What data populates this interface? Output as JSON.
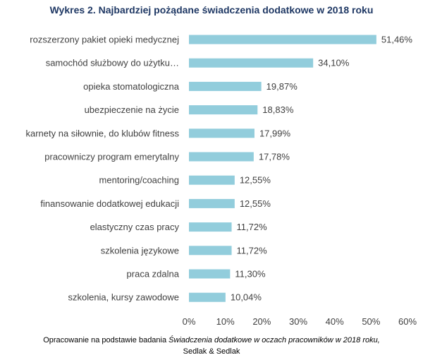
{
  "chart_data": {
    "type": "bar",
    "orientation": "horizontal",
    "title": "Wykres 2. Najbardziej pożądane świadczenia dodatkowe w 2018 roku",
    "categories": [
      "rozszerzony pakiet opieki medycznej",
      "samochód służbowy do użytku…",
      "opieka stomatologiczna",
      "ubezpieczenie na życie",
      "karnety na siłownie, do klubów fitness",
      "pracowniczy program emerytalny",
      "mentoring/coaching",
      "finansowanie dodatkowej edukacji",
      "elastyczny czas pracy",
      "szkolenia językowe",
      "praca zdalna",
      "szkolenia, kursy zawodowe"
    ],
    "values": [
      51.46,
      34.1,
      19.87,
      18.83,
      17.99,
      17.78,
      12.55,
      12.55,
      11.72,
      11.72,
      11.3,
      10.04
    ],
    "value_labels": [
      "51,46%",
      "34,10%",
      "19,87%",
      "18,83%",
      "17,99%",
      "17,78%",
      "12,55%",
      "12,55%",
      "11,72%",
      "11,72%",
      "11,30%",
      "10,04%"
    ],
    "xlim": [
      0,
      60
    ],
    "ticks": [
      0,
      10,
      20,
      30,
      40,
      50,
      60
    ],
    "tick_labels": [
      "0%",
      "10%",
      "20%",
      "30%",
      "40%",
      "50%",
      "60%"
    ],
    "grid": false,
    "legend": "none",
    "bar_color": "#92cddc"
  },
  "footer": {
    "line1_prefix": "Opracowanie na podstawie badania ",
    "line1_italic": "Świadczenia dodatkowe w oczach pracowników w 2018 roku,",
    "line2": "Sedlak & Sedlak"
  }
}
